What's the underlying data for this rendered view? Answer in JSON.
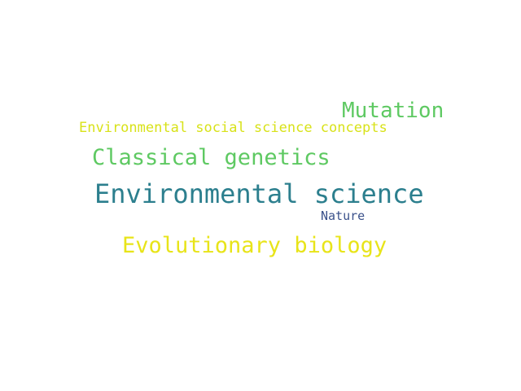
{
  "word_cloud": {
    "words": [
      {
        "text": "Mutation",
        "color": "#5ec962"
      },
      {
        "text": "Environmental social science concepts",
        "color": "#d8e219"
      },
      {
        "text": "Classical genetics",
        "color": "#5ec962"
      },
      {
        "text": "Environmental science",
        "color": "#2c7f8e"
      },
      {
        "text": "Nature",
        "color": "#3b528b"
      },
      {
        "text": "Evolutionary biology",
        "color": "#e8e419"
      }
    ]
  }
}
